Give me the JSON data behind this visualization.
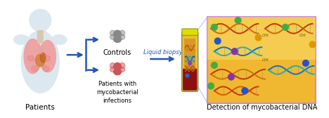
{
  "label_patients": "Patients",
  "label_controls": "Controls",
  "label_patients_myco": "Patients with\nmycobacterial\ninfections",
  "label_liquid_biopsy": "Liquid biopsy",
  "label_detection": "Detection of mycobacterial DNA",
  "bg_color": "#ffffff",
  "arrow_color": "#2255bb",
  "text_color": "#000000",
  "liquid_biopsy_color": "#2255bb",
  "detection_box_edge": "#cc88cc",
  "detection_box_fill_top": "#f0b830",
  "detection_box_fill_bot": "#f5d060",
  "lung_pink": "#f0a0a0",
  "lung_dark": "#e07070",
  "body_color": "#dce8f0",
  "controls_color": "#888888",
  "patients_color": "#cc5555",
  "tube_yellow": "#e8c030",
  "tube_orange": "#d08020",
  "tube_red": "#8B1010",
  "tube_cap": "#dddd00",
  "magline_color": "#aaccee"
}
